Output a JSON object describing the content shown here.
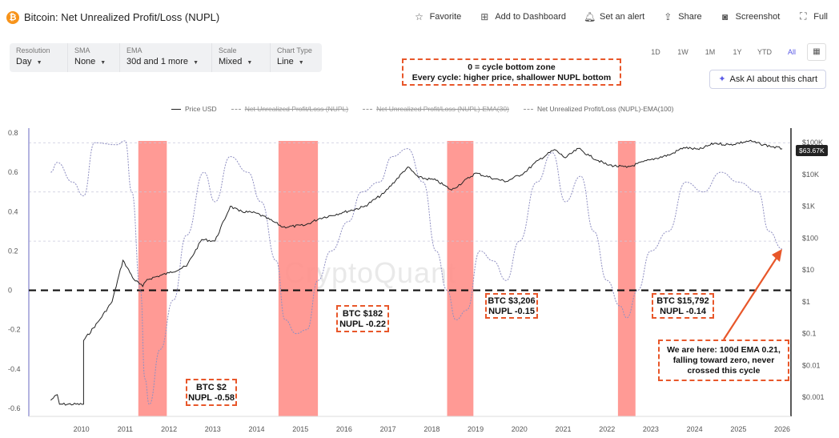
{
  "header": {
    "logo_glyph": "₿",
    "title": "Bitcoin: Net Unrealized Profit/Loss (NUPL)",
    "actions": [
      {
        "icon": "star-icon",
        "glyph": "☆",
        "label": "Favorite"
      },
      {
        "icon": "dashboard-icon",
        "glyph": "⊞",
        "label": "Add to Dashboard"
      },
      {
        "icon": "bell-icon",
        "glyph": "🔔︎",
        "label": "Set an alert"
      },
      {
        "icon": "share-icon",
        "glyph": "⇪",
        "label": "Share"
      },
      {
        "icon": "camera-icon",
        "glyph": "◙",
        "label": "Screenshot"
      },
      {
        "icon": "fullscreen-icon",
        "glyph": "⛶",
        "label": "Full"
      }
    ]
  },
  "controls": [
    {
      "label": "Resolution",
      "value": "Day"
    },
    {
      "label": "SMA",
      "value": "None"
    },
    {
      "label": "EMA",
      "value": "30d and 1 more"
    },
    {
      "label": "Scale",
      "value": "Mixed"
    },
    {
      "label": "Chart Type",
      "value": "Line"
    }
  ],
  "ranges": [
    "1D",
    "1W",
    "1M",
    "1Y",
    "YTD",
    "All"
  ],
  "active_range": "All",
  "ask_ai_label": "Ask AI about this chart",
  "watermark": "CryptoQuant",
  "annotations": {
    "zone_line1": "0 = cycle bottom zone",
    "zone_line2": "Every cycle: higher price, shallower NUPL bottom",
    "b1_price": "BTC $2",
    "b1_nupl": "NUPL -0.58",
    "b2_price": "BTC $182",
    "b2_nupl": "NUPL -0.22",
    "b3_price": "BTC $3,206",
    "b3_nupl": "NUPL -0.15",
    "b4_price": "BTC $15,792",
    "b4_nupl": "NUPL -0.14",
    "here_text": "We are here: 100d EMA 0.21, falling toward zero, never crossed this cycle"
  },
  "legend": [
    {
      "label": "Price USD",
      "style": "solid"
    },
    {
      "label": "Net Unrealized Profit/Loss (NUPL)",
      "style": "strike"
    },
    {
      "label": "Net Unrealized Profit/Loss (NUPL)-EMA(30)",
      "style": "strike"
    },
    {
      "label": "Net Unrealized Profit/Loss (NUPL)-EMA(100)",
      "style": "dotted"
    }
  ],
  "current_price_label": "$63.67K",
  "colors": {
    "accent": "#5a5ae6",
    "highlight": "#ff8f8a",
    "annotation": "#e8572a",
    "price": "#222222",
    "nupl": "#8f8fc2"
  },
  "chart_data": {
    "type": "line",
    "x_ticks": [
      "2010",
      "2011",
      "2012",
      "2013",
      "2014",
      "2015",
      "2016",
      "2017",
      "2018",
      "2019",
      "2020",
      "2021",
      "2022",
      "2023",
      "2024",
      "2025",
      "2026"
    ],
    "left_axis": {
      "ticks": [
        "0.8",
        "0.6",
        "0.4",
        "0.2",
        "0",
        "-0.2",
        "-0.4",
        "-0.6"
      ],
      "ylim": [
        -0.6,
        0.8
      ]
    },
    "right_axis": {
      "scale": "log",
      "ticks": [
        "$100K",
        "$10K",
        "$1K",
        "$100",
        "$10",
        "$1",
        "$0.1",
        "$0.01",
        "$0.001"
      ]
    },
    "highlight_years": [
      [
        2011.8,
        2012.45
      ],
      [
        2015.0,
        2015.9
      ],
      [
        2018.85,
        2019.45
      ],
      [
        2022.75,
        2023.15
      ]
    ],
    "series": [
      {
        "name": "Price USD",
        "axis": "right",
        "points": [
          [
            2009.8,
            0.0008
          ],
          [
            2009.95,
            0.0012
          ],
          [
            2010.0,
            0.0006
          ],
          [
            2010.55,
            0.0006
          ],
          [
            2010.55,
            0.06
          ],
          [
            2010.9,
            0.25
          ],
          [
            2011.2,
            1
          ],
          [
            2011.45,
            20
          ],
          [
            2011.7,
            5
          ],
          [
            2011.9,
            3
          ],
          [
            2012.0,
            5
          ],
          [
            2012.5,
            8
          ],
          [
            2012.9,
            13
          ],
          [
            2013.25,
            90
          ],
          [
            2013.55,
            80
          ],
          [
            2013.9,
            1000
          ],
          [
            2014.1,
            700
          ],
          [
            2014.5,
            600
          ],
          [
            2014.9,
            320
          ],
          [
            2015.1,
            220
          ],
          [
            2015.6,
            250
          ],
          [
            2015.95,
            420
          ],
          [
            2016.5,
            650
          ],
          [
            2016.95,
            960
          ],
          [
            2017.4,
            2500
          ],
          [
            2017.95,
            17000
          ],
          [
            2018.2,
            8000
          ],
          [
            2018.6,
            6500
          ],
          [
            2018.95,
            3200
          ],
          [
            2019.5,
            11000
          ],
          [
            2019.95,
            7200
          ],
          [
            2020.2,
            6000
          ],
          [
            2020.6,
            11000
          ],
          [
            2020.95,
            29000
          ],
          [
            2021.3,
            60000
          ],
          [
            2021.55,
            33000
          ],
          [
            2021.85,
            65000
          ],
          [
            2022.1,
            38000
          ],
          [
            2022.5,
            20000
          ],
          [
            2022.95,
            16500
          ],
          [
            2023.5,
            29000
          ],
          [
            2023.95,
            42000
          ],
          [
            2024.25,
            70000
          ],
          [
            2024.6,
            60000
          ],
          [
            2024.95,
            95000
          ],
          [
            2025.3,
            85000
          ],
          [
            2025.75,
            112000
          ],
          [
            2026.0,
            90000
          ],
          [
            2026.5,
            63670
          ]
        ]
      },
      {
        "name": "Net Unrealized Profit/Loss (NUPL)-EMA(100)",
        "axis": "left",
        "points": [
          [
            2009.8,
            0.6
          ],
          [
            2009.95,
            0.65
          ],
          [
            2010.3,
            0.55
          ],
          [
            2010.55,
            0.48
          ],
          [
            2010.8,
            0.75
          ],
          [
            2011.3,
            0.74
          ],
          [
            2011.5,
            0.76
          ],
          [
            2011.65,
            0.5
          ],
          [
            2011.85,
            0.0
          ],
          [
            2011.95,
            -0.45
          ],
          [
            2012.05,
            -0.58
          ],
          [
            2012.3,
            -0.3
          ],
          [
            2012.6,
            -0.05
          ],
          [
            2012.9,
            0.28
          ],
          [
            2013.3,
            0.6
          ],
          [
            2013.55,
            0.45
          ],
          [
            2013.9,
            0.68
          ],
          [
            2014.3,
            0.6
          ],
          [
            2014.6,
            0.45
          ],
          [
            2014.95,
            0.15
          ],
          [
            2015.15,
            -0.15
          ],
          [
            2015.4,
            -0.22
          ],
          [
            2015.65,
            -0.2
          ],
          [
            2015.9,
            0.05
          ],
          [
            2016.2,
            0.2
          ],
          [
            2016.6,
            0.35
          ],
          [
            2016.9,
            0.5
          ],
          [
            2017.3,
            0.55
          ],
          [
            2017.6,
            0.68
          ],
          [
            2017.95,
            0.72
          ],
          [
            2018.3,
            0.55
          ],
          [
            2018.6,
            0.2
          ],
          [
            2018.85,
            0.0
          ],
          [
            2019.05,
            -0.15
          ],
          [
            2019.3,
            -0.1
          ],
          [
            2019.6,
            0.2
          ],
          [
            2019.9,
            0.15
          ],
          [
            2020.2,
            0.05
          ],
          [
            2020.5,
            0.25
          ],
          [
            2020.9,
            0.55
          ],
          [
            2021.25,
            0.7
          ],
          [
            2021.55,
            0.45
          ],
          [
            2021.9,
            0.58
          ],
          [
            2022.2,
            0.3
          ],
          [
            2022.5,
            0.05
          ],
          [
            2022.8,
            -0.08
          ],
          [
            2022.95,
            -0.14
          ],
          [
            2023.2,
            0.0
          ],
          [
            2023.5,
            0.2
          ],
          [
            2023.9,
            0.3
          ],
          [
            2024.3,
            0.55
          ],
          [
            2024.7,
            0.5
          ],
          [
            2025.1,
            0.6
          ],
          [
            2025.5,
            0.55
          ],
          [
            2025.95,
            0.5
          ],
          [
            2026.2,
            0.3
          ],
          [
            2026.5,
            0.21
          ]
        ]
      }
    ]
  }
}
